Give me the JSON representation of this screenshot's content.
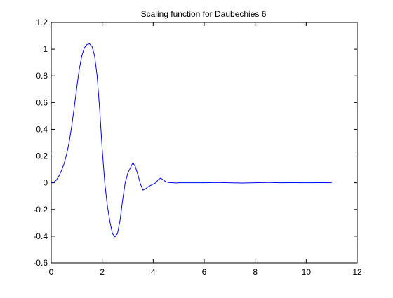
{
  "chart_data": {
    "type": "line",
    "title": "Scaling function for Daubechies 6",
    "xlabel": "",
    "ylabel": "",
    "xlim": [
      0,
      12
    ],
    "ylim": [
      -0.6,
      1.2
    ],
    "xticks": [
      0,
      2,
      4,
      6,
      8,
      10,
      12
    ],
    "yticks": [
      -0.6,
      -0.4,
      -0.2,
      0,
      0.2,
      0.4,
      0.6,
      0.8,
      1,
      1.2
    ],
    "xtick_labels": [
      "0",
      "2",
      "4",
      "6",
      "8",
      "10",
      "12"
    ],
    "ytick_labels": [
      "-0.6",
      "-0.4",
      "-0.2",
      "0",
      "0.2",
      "0.4",
      "0.6",
      "0.8",
      "1",
      "1.2"
    ],
    "grid": false,
    "series": [
      {
        "color": "#0000ff",
        "x": [
          0,
          0.1,
          0.2,
          0.3,
          0.4,
          0.5,
          0.6,
          0.7,
          0.8,
          0.9,
          1.0,
          1.1,
          1.2,
          1.3,
          1.4,
          1.5,
          1.6,
          1.7,
          1.8,
          1.9,
          2.0,
          2.1,
          2.2,
          2.3,
          2.4,
          2.5,
          2.6,
          2.7,
          2.8,
          2.9,
          3.0,
          3.1,
          3.2,
          3.3,
          3.4,
          3.5,
          3.6,
          3.7,
          3.8,
          3.9,
          4.0,
          4.1,
          4.2,
          4.3,
          4.4,
          4.5,
          4.6,
          4.7,
          4.8,
          4.9,
          5.0,
          5.1,
          5.2,
          5.3,
          5.4,
          5.5,
          5.6,
          5.7,
          5.8,
          5.9,
          6.0,
          6.5,
          7.0,
          7.5,
          8.0,
          8.5,
          9.0,
          9.5,
          10.0,
          10.5,
          11.0
        ],
        "y": [
          0,
          0.005,
          0.02,
          0.05,
          0.09,
          0.14,
          0.21,
          0.3,
          0.42,
          0.56,
          0.71,
          0.85,
          0.95,
          1.01,
          1.035,
          1.04,
          1.02,
          0.95,
          0.8,
          0.55,
          0.25,
          0.0,
          -0.17,
          -0.29,
          -0.38,
          -0.405,
          -0.38,
          -0.28,
          -0.13,
          0.0,
          0.07,
          0.11,
          0.15,
          0.12,
          0.06,
          -0.01,
          -0.055,
          -0.045,
          -0.03,
          -0.02,
          -0.01,
          0.0,
          0.025,
          0.035,
          0.02,
          0.008,
          0.002,
          0.001,
          0.0,
          -0.002,
          0.0,
          0.0,
          0.0,
          0.0,
          0.0,
          0.0,
          0.0,
          0.0,
          0.0,
          0.0,
          0.0,
          0.002,
          0.0,
          -0.002,
          0.0,
          0.002,
          0.0,
          0.001,
          0.0,
          0.001,
          0.0
        ]
      }
    ]
  }
}
